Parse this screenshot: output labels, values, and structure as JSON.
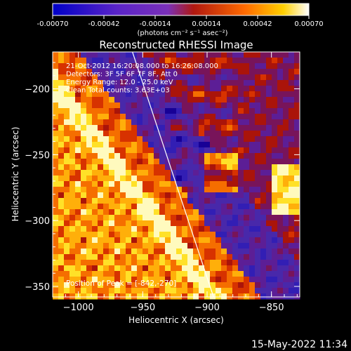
{
  "colorbar": {
    "ticks": [
      "-0.00070",
      "-0.00042",
      "-0.00014",
      "0.00014",
      "0.00042",
      "0.00070"
    ],
    "units": "(photons cm⁻² s⁻¹ asec⁻²)"
  },
  "chart_data": {
    "type": "heatmap",
    "title": "Reconstructed RHESSI Image",
    "xlabel": "Heliocentric X (arcsec)",
    "ylabel": "Heliocentric Y (arcsec)",
    "xlim": [
      -1020,
      -828
    ],
    "ylim": [
      -358,
      -172
    ],
    "xticks": [
      -1000,
      -950,
      -900,
      -850
    ],
    "yticks": [
      -200,
      -250,
      -300,
      -350
    ],
    "clim": [
      -0.0007,
      0.0007
    ],
    "colormap": "blue-purple-red-yellow-white",
    "annotations": [
      "21-Oct-2012 16:20:08.000 to 16:26:08.000",
      "Detectors: 3F 5F 6F 7F 8F, Att 0",
      "Energy Range: 12.0 - 25.0 keV",
      "Clean     Total counts: 3.63E+03"
    ],
    "peak_label": "Position of Peak = [-842,-270]",
    "peak_position": [
      -842,
      -270
    ],
    "limb_line": [
      [
        -958,
        -172
      ],
      [
        -895,
        -358
      ]
    ]
  },
  "footer": {
    "date": "15-May-2022 11:34"
  }
}
